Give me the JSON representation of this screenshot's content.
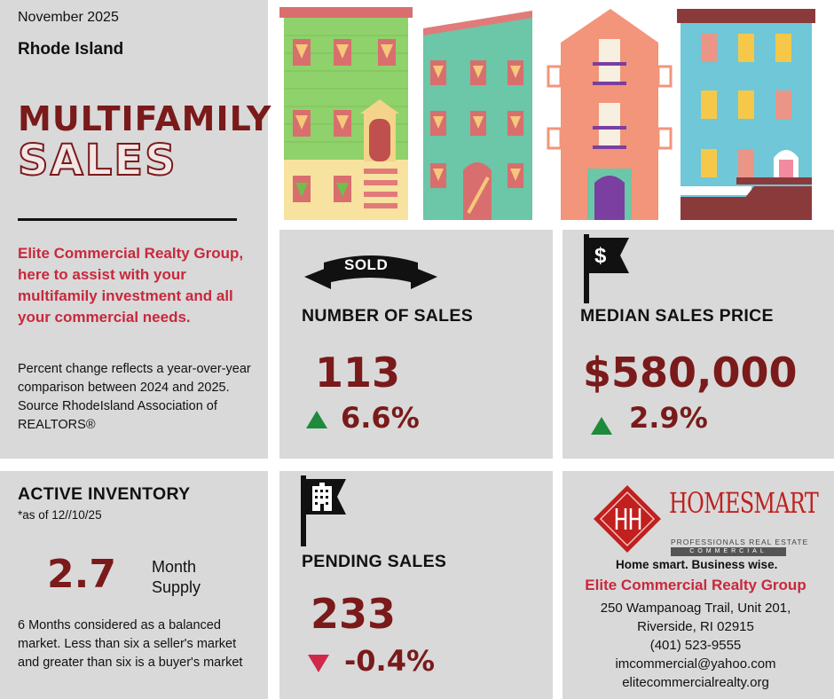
{
  "date": "November 2025",
  "region": "Rhode Island",
  "title_line1": "MULTIFAMILY",
  "title_line2": "SALES",
  "intro": "Elite Commercial Realty Group, here to assist with your multifamily investment and all your commercial needs.",
  "source_note": "Percent change reflects a year-over-year comparison between 2024 and 2025. Source RhodeIsland Association of REALTORS®",
  "sales": {
    "banner": "SOLD",
    "heading": "NUMBER OF SALES",
    "value": "113",
    "change": "6.6%",
    "direction": "up"
  },
  "median": {
    "icon": "$",
    "heading": "MEDIAN SALES PRICE",
    "value": "$580,000",
    "change": "2.9%",
    "direction": "up"
  },
  "inventory": {
    "heading": "ACTIVE INVENTORY",
    "asof": "*as of  12//10/25",
    "value": "2.7",
    "unit_line1": "Month",
    "unit_line2": "Supply",
    "note": "6 Months considered as a balanced market. Less than six a seller's market and greater than six is a buyer's market"
  },
  "pending": {
    "heading": "PENDING SALES",
    "value": "233",
    "change": "-0.4%",
    "direction": "down"
  },
  "brand": {
    "logo_name": "HOMESMART",
    "logo_sub1": "PROFESSIONALS REAL ESTATE",
    "logo_sub2": "COMMERCIAL",
    "tagline": "Home smart. Business wise.",
    "company": "Elite Commercial Realty Group",
    "address1": "250 Wampanoag Trail, Unit 201,",
    "address2": "Riverside, RI 02915",
    "phone": "(401) 523-9555",
    "email": "imcommercial@yahoo.com",
    "website": "elitecommercialrealty.org"
  },
  "colors": {
    "maroon": "#7a1a1a",
    "accent_red": "#c8283c",
    "up_green": "#1e8a3c",
    "down_red": "#d0284a",
    "panel_gray": "#d9d9d9"
  }
}
